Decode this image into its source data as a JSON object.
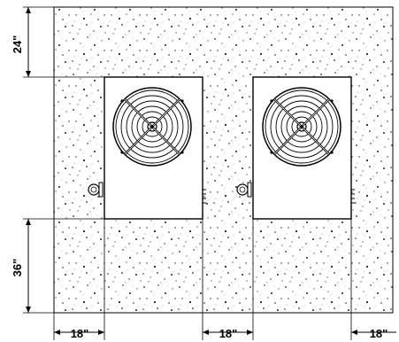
{
  "drawing": {
    "dimensions": {
      "top_clearance": "24\"",
      "bottom_clearance": "36\"",
      "side_clearance_left": "18\"",
      "side_clearance_middle": "18\"",
      "side_clearance_right": "18\""
    },
    "units": [
      {
        "name": "unit-left"
      },
      {
        "name": "unit-right"
      }
    ],
    "colors": {
      "line": "#000000",
      "background": "#ffffff",
      "stipple": "#222222"
    }
  }
}
